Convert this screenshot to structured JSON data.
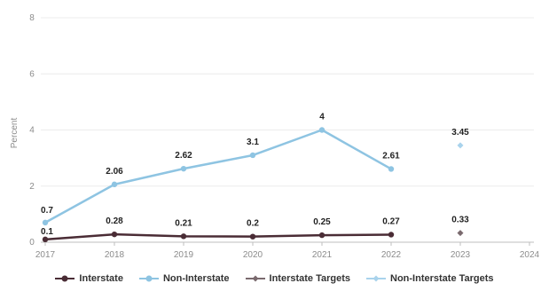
{
  "chart_data": {
    "type": "line",
    "ylabel": "Percent",
    "xlabel": "",
    "title": "",
    "x": [
      "2017",
      "2018",
      "2019",
      "2020",
      "2021",
      "2022",
      "2023",
      "2024"
    ],
    "ylim": [
      0,
      8
    ],
    "yticks": [
      "0",
      "2",
      "4",
      "6",
      "8"
    ],
    "grid": true,
    "legend_position": "bottom",
    "series": [
      {
        "name": "Interstate",
        "color": "#4a2c35",
        "style": "line-marker",
        "values": [
          0.1,
          0.28,
          0.21,
          0.2,
          0.25,
          0.27,
          null,
          null
        ],
        "labels": [
          "0.1",
          "0.28",
          "0.21",
          "0.2",
          "0.25",
          "0.27",
          "",
          ""
        ]
      },
      {
        "name": "Non-Interstate",
        "color": "#8ec4e2",
        "style": "line-marker",
        "values": [
          0.7,
          2.06,
          2.62,
          3.1,
          4,
          2.61,
          null,
          null
        ],
        "labels": [
          "0.7",
          "2.06",
          "2.62",
          "3.1",
          "4",
          "2.61",
          "",
          ""
        ]
      },
      {
        "name": "Interstate Targets",
        "color": "#7a6a6e",
        "style": "diamond",
        "values": [
          null,
          null,
          null,
          null,
          null,
          null,
          0.33,
          null
        ],
        "labels": [
          "",
          "",
          "",
          "",
          "",
          "",
          "0.33",
          ""
        ]
      },
      {
        "name": "Non-Interstate Targets",
        "color": "#a9d3ec",
        "style": "diamond",
        "values": [
          null,
          null,
          null,
          null,
          null,
          null,
          3.45,
          null
        ],
        "labels": [
          "",
          "",
          "",
          "",
          "",
          "",
          "3.45",
          ""
        ]
      }
    ]
  }
}
